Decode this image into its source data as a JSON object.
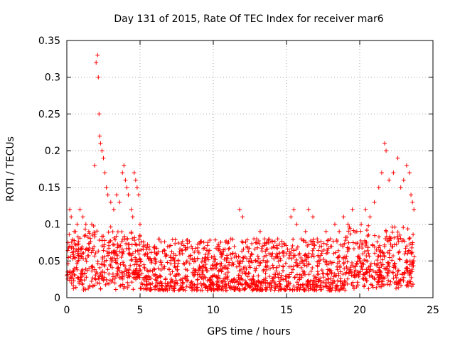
{
  "chart_data": {
    "type": "scatter",
    "title": "Day 131 of 2015, Rate Of TEC Index for receiver mar6",
    "xlabel": "GPS time / hours",
    "ylabel": "ROTI / TECUs",
    "xlim": [
      0,
      25
    ],
    "ylim": [
      0,
      0.35
    ],
    "x_ticks": [
      0,
      5,
      10,
      15,
      20,
      25
    ],
    "x_tick_labels": [
      "0",
      "5",
      "10",
      "15",
      "20",
      "25"
    ],
    "y_ticks": [
      0,
      0.05,
      0.1,
      0.15,
      0.2,
      0.25,
      0.3,
      0.35
    ],
    "y_tick_labels": [
      "0",
      "0.05",
      "0.1",
      "0.15",
      "0.2",
      "0.25",
      "0.3",
      "0.35"
    ],
    "grid": true,
    "marker": "+",
    "color": "#ff0000",
    "series": [
      {
        "name": "ROTI",
        "x": [
          0.0,
          0.2,
          0.3,
          0.5,
          0.7,
          0.9,
          1.1,
          1.3,
          1.5,
          1.7,
          1.9,
          2.0,
          2.1,
          2.15,
          2.2,
          2.25,
          2.3,
          2.4,
          2.5,
          2.6,
          2.7,
          2.8,
          3.0,
          3.2,
          3.4,
          3.6,
          3.8,
          3.9,
          4.0,
          4.1,
          4.2,
          4.4,
          4.5,
          4.6,
          4.7,
          4.8,
          4.9,
          5.0,
          5.2,
          5.5,
          5.8,
          6.1,
          6.4,
          6.7,
          7.0,
          7.3,
          7.6,
          7.9,
          8.2,
          8.5,
          8.8,
          9.1,
          9.4,
          9.7,
          10.0,
          10.3,
          10.6,
          10.9,
          11.2,
          11.5,
          11.8,
          12.0,
          12.3,
          12.6,
          12.9,
          13.2,
          13.5,
          13.8,
          14.1,
          14.4,
          14.7,
          15.0,
          15.3,
          15.5,
          15.7,
          16.0,
          16.3,
          16.5,
          16.8,
          17.1,
          17.4,
          17.7,
          18.0,
          18.3,
          18.6,
          18.9,
          19.2,
          19.5,
          19.8,
          20.1,
          20.4,
          20.7,
          21.0,
          21.3,
          21.5,
          21.7,
          21.8,
          22.0,
          22.3,
          22.6,
          22.8,
          23.0,
          23.2,
          23.4,
          23.5,
          23.6,
          23.7
        ],
        "y": [
          0.03,
          0.12,
          0.11,
          0.09,
          0.1,
          0.12,
          0.11,
          0.1,
          0.09,
          0.1,
          0.18,
          0.32,
          0.33,
          0.3,
          0.25,
          0.22,
          0.21,
          0.2,
          0.19,
          0.17,
          0.15,
          0.14,
          0.13,
          0.12,
          0.14,
          0.13,
          0.17,
          0.18,
          0.16,
          0.15,
          0.14,
          0.12,
          0.11,
          0.17,
          0.16,
          0.15,
          0.14,
          0.1,
          0.07,
          0.06,
          0.05,
          0.06,
          0.05,
          0.06,
          0.07,
          0.06,
          0.05,
          0.06,
          0.05,
          0.07,
          0.05,
          0.04,
          0.05,
          0.06,
          0.04,
          0.07,
          0.06,
          0.05,
          0.08,
          0.06,
          0.12,
          0.11,
          0.07,
          0.06,
          0.05,
          0.09,
          0.08,
          0.06,
          0.07,
          0.08,
          0.07,
          0.06,
          0.11,
          0.12,
          0.1,
          0.08,
          0.09,
          0.12,
          0.11,
          0.08,
          0.07,
          0.09,
          0.08,
          0.1,
          0.09,
          0.11,
          0.1,
          0.12,
          0.09,
          0.1,
          0.12,
          0.11,
          0.13,
          0.15,
          0.17,
          0.21,
          0.2,
          0.16,
          0.17,
          0.19,
          0.15,
          0.16,
          0.18,
          0.17,
          0.14,
          0.13,
          0.12
        ]
      }
    ],
    "noise_floor": {
      "min": 0.01,
      "typical": 0.04,
      "max": 0.08
    }
  }
}
